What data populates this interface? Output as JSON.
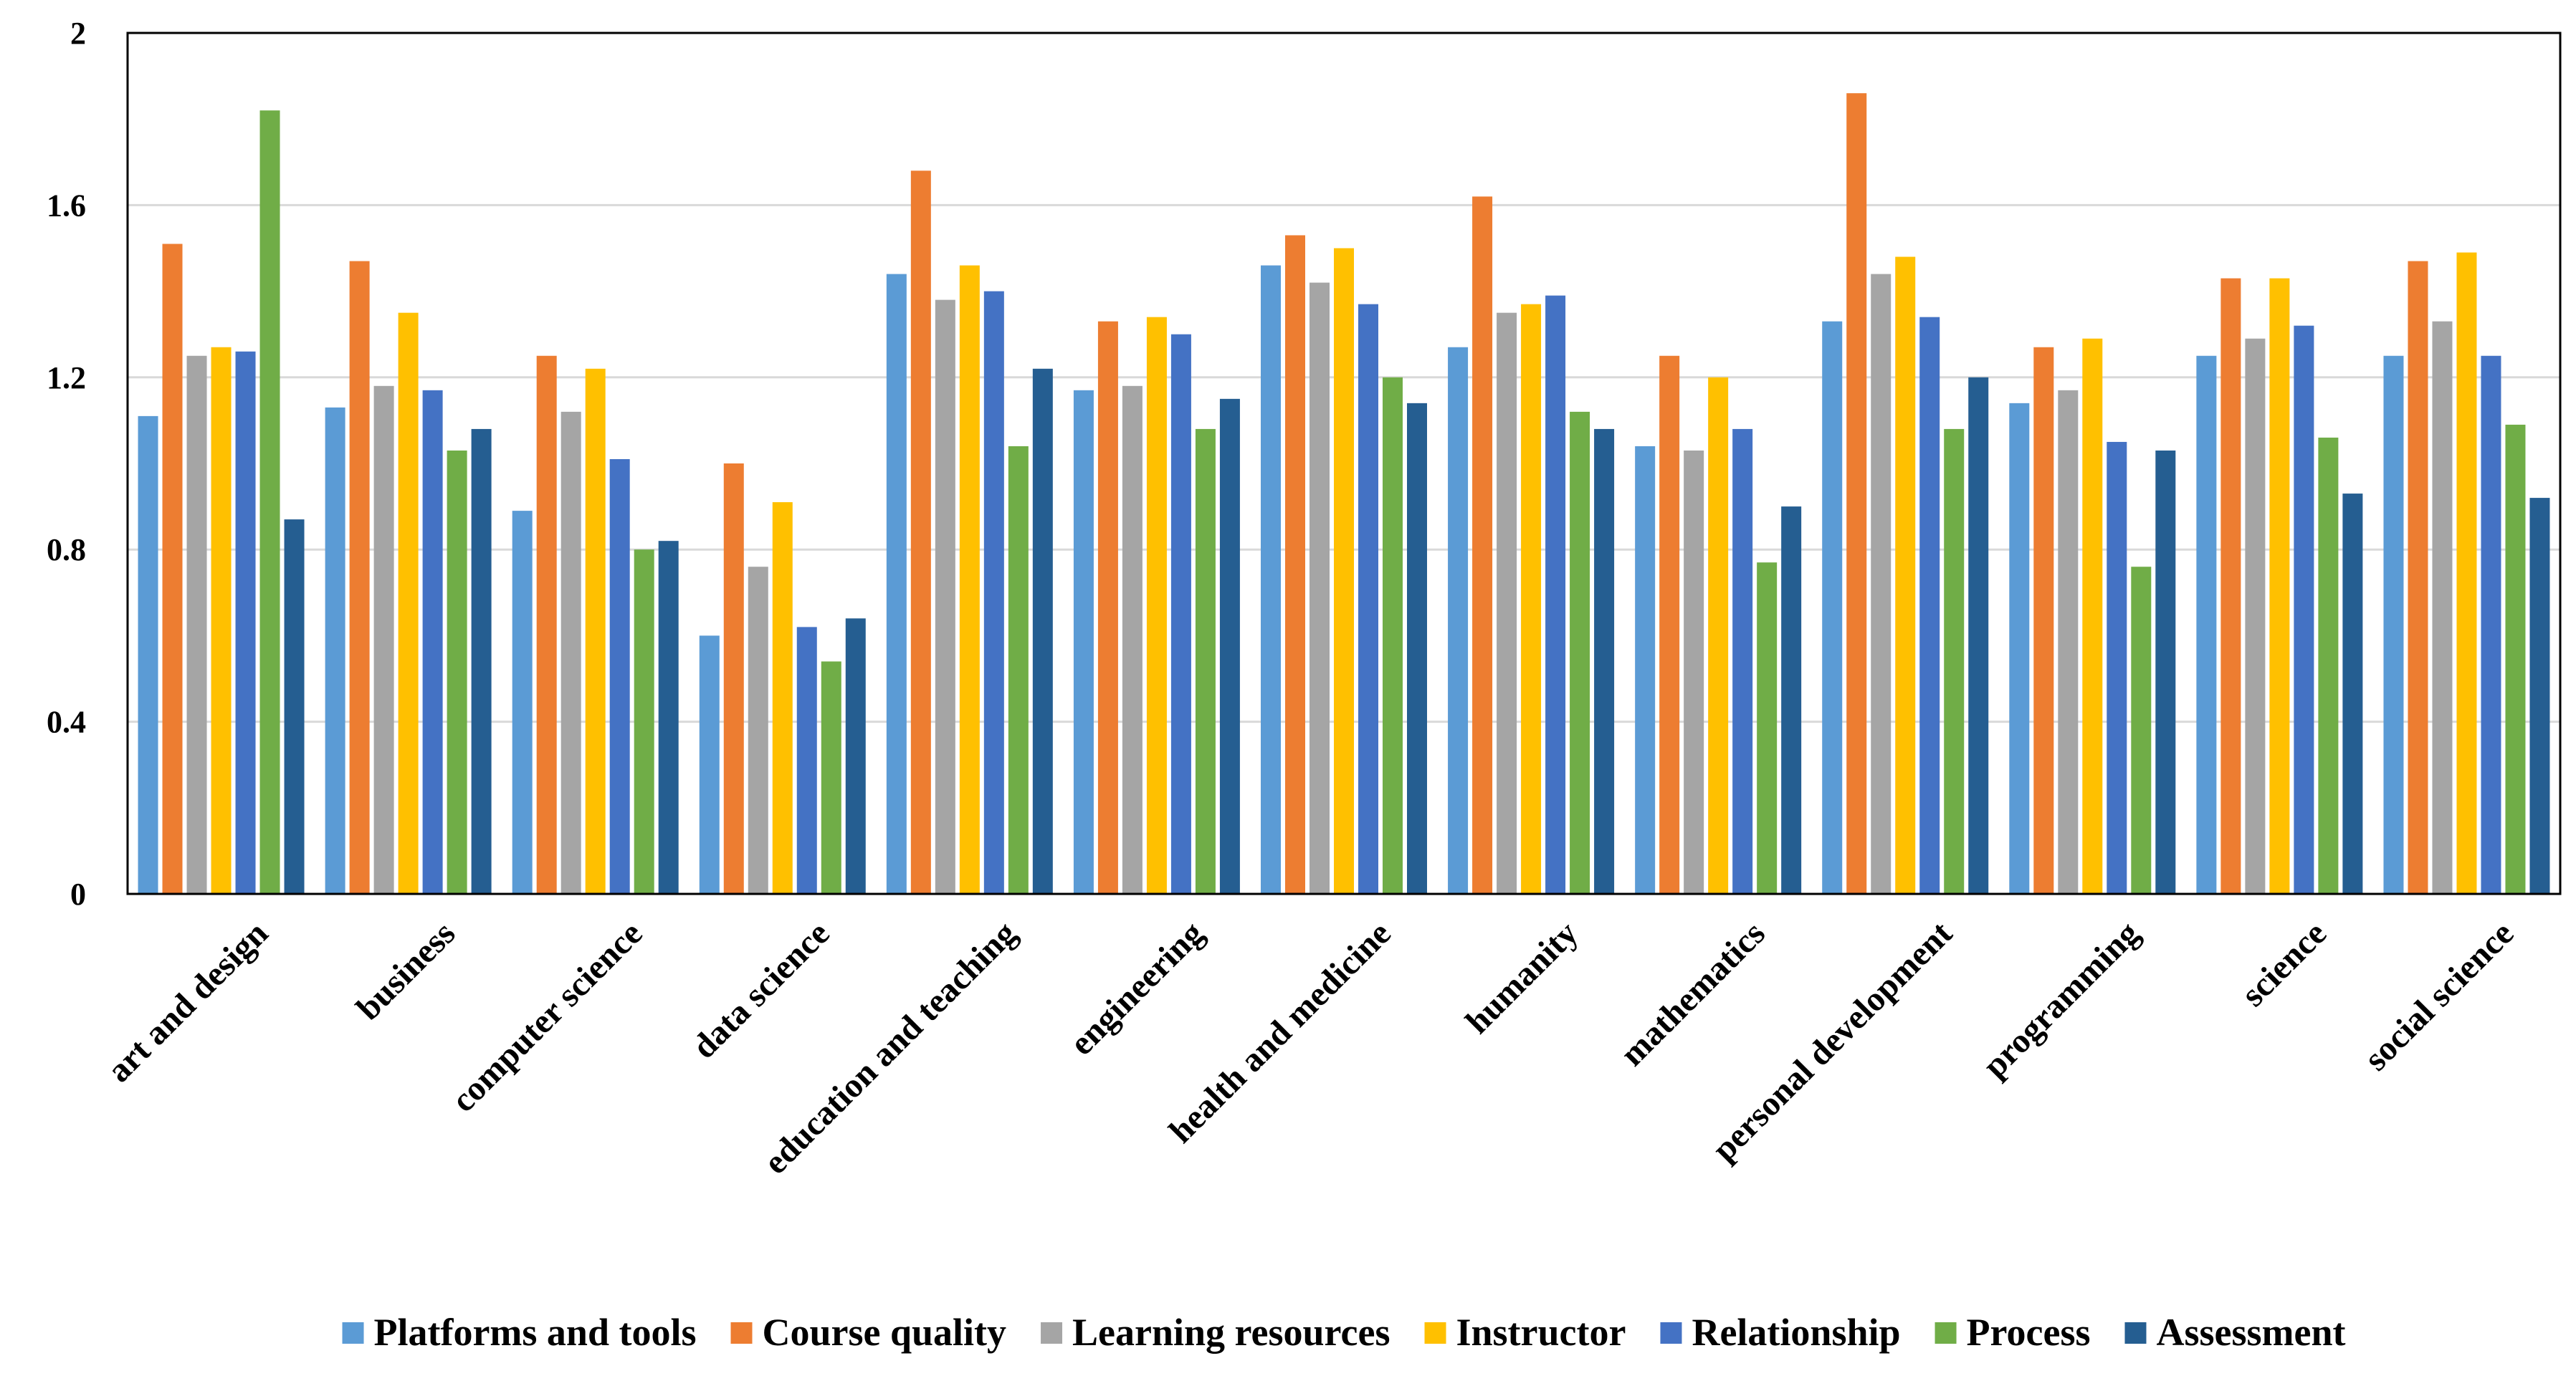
{
  "chart_data": {
    "type": "bar",
    "title": "",
    "xlabel": "",
    "ylabel": "",
    "ylim": [
      0,
      2
    ],
    "yticks": [
      "0",
      "0.4",
      "0.8",
      "1.2",
      "1.6",
      "2"
    ],
    "yticks_values": [
      0,
      0.4,
      0.8,
      1.2,
      1.6,
      2.0
    ],
    "grid": true,
    "legend_position": "bottom",
    "categories": [
      "art and design",
      "business",
      "computer science",
      "data science",
      "education and teaching",
      "engineering",
      "health and medicine",
      "humanity",
      "mathematics",
      "personal development",
      "programming",
      "science",
      "social science"
    ],
    "series": [
      {
        "name": "Platforms and tools",
        "color": "#5B9BD5",
        "values": [
          1.11,
          1.13,
          0.89,
          0.6,
          1.44,
          1.17,
          1.46,
          1.27,
          1.04,
          1.33,
          1.14,
          1.25,
          1.25
        ]
      },
      {
        "name": "Course quality",
        "color": "#ED7D31",
        "values": [
          1.51,
          1.47,
          1.25,
          1.0,
          1.68,
          1.33,
          1.53,
          1.62,
          1.25,
          1.86,
          1.27,
          1.43,
          1.47
        ]
      },
      {
        "name": "Learning resources",
        "color": "#A5A5A5",
        "values": [
          1.25,
          1.18,
          1.12,
          0.76,
          1.38,
          1.18,
          1.42,
          1.35,
          1.03,
          1.44,
          1.17,
          1.29,
          1.33
        ]
      },
      {
        "name": "Instructor",
        "color": "#FFC000",
        "values": [
          1.27,
          1.35,
          1.22,
          0.91,
          1.46,
          1.34,
          1.5,
          1.37,
          1.2,
          1.48,
          1.29,
          1.43,
          1.49
        ]
      },
      {
        "name": "Relationship",
        "color": "#4472C4",
        "values": [
          1.26,
          1.17,
          1.01,
          0.62,
          1.4,
          1.3,
          1.37,
          1.39,
          1.08,
          1.34,
          1.05,
          1.32,
          1.25
        ]
      },
      {
        "name": "Process",
        "color": "#70AD47",
        "values": [
          1.82,
          1.03,
          0.8,
          0.54,
          1.04,
          1.08,
          1.2,
          1.12,
          0.77,
          1.08,
          0.76,
          1.06,
          1.09
        ]
      },
      {
        "name": "Assessment",
        "color": "#255E91",
        "values": [
          0.87,
          1.08,
          0.82,
          0.64,
          1.22,
          1.15,
          1.14,
          1.08,
          0.9,
          1.2,
          1.03,
          0.93,
          0.92
        ]
      }
    ]
  }
}
